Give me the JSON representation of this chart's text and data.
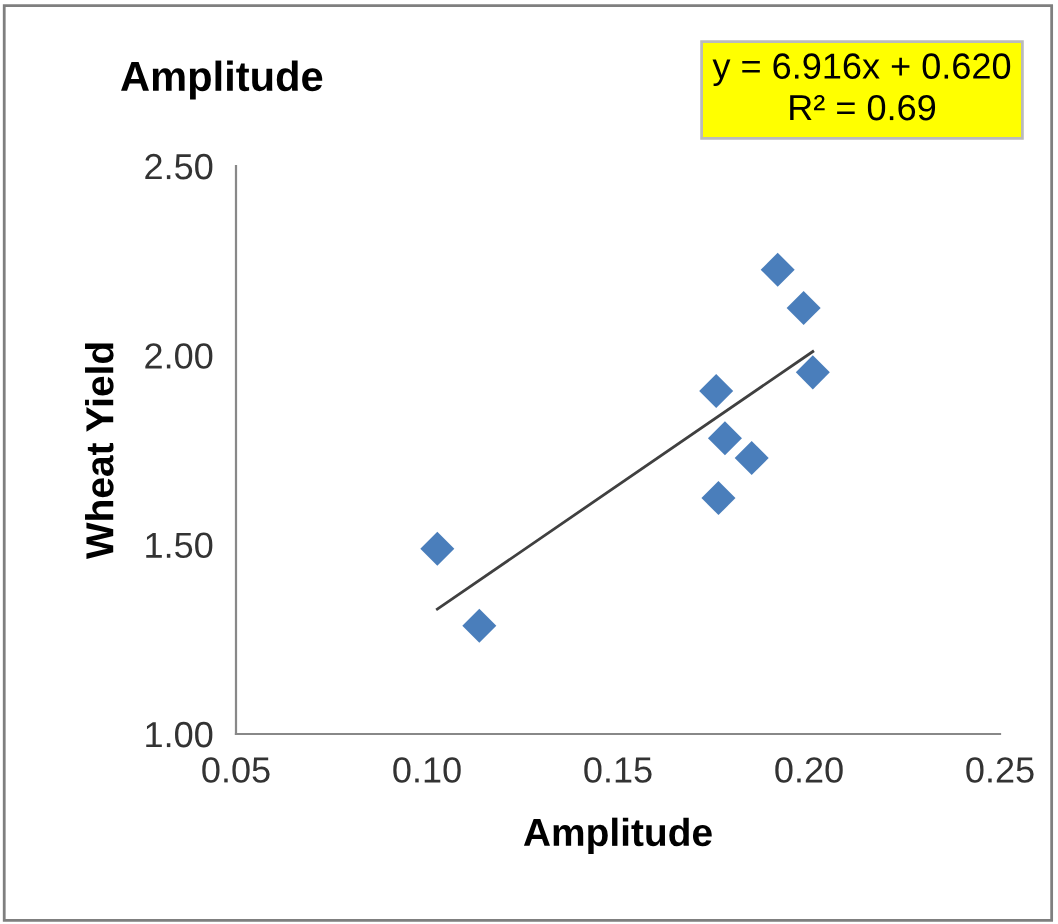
{
  "chart_data": {
    "type": "scatter",
    "title": "Amplitude",
    "xlabel": "Amplitude",
    "ylabel": "Wheat Yield",
    "annotations": [
      "y = 6.916x + 0.620\nR² = 0.69"
    ],
    "xlim": [
      0.05,
      0.25
    ],
    "xticks": [
      {
        "value": 0.05,
        "label": "0.05"
      },
      {
        "value": 0.1,
        "label": "0.10"
      },
      {
        "value": 0.15,
        "label": "0.15"
      },
      {
        "value": 0.2,
        "label": "0.20"
      },
      {
        "value": 0.25,
        "label": "0.25"
      }
    ],
    "ylim": [
      1.0,
      2.5
    ],
    "yticks": [
      {
        "value": 1.0,
        "label": "1.00"
      },
      {
        "value": 1.5,
        "label": "1.50"
      },
      {
        "value": 2.0,
        "label": "2.00"
      },
      {
        "value": 2.5,
        "label": "2.50"
      }
    ],
    "grid": false,
    "legend": false,
    "marker": "diamond",
    "series": [
      {
        "color": "#4a7ebb",
        "x": [
          0.1027,
          0.1137,
          0.1757,
          0.178,
          0.1763,
          0.185,
          0.1918,
          0.1986,
          0.201
        ],
        "values": [
          1.489,
          1.286,
          1.906,
          1.781,
          1.623,
          1.729,
          2.226,
          2.125,
          1.955
        ]
      },
      {
        "type": "line",
        "color": "#404040",
        "marker": "none",
        "line_style": "solid",
        "x": [
          0.1027,
          0.201
        ],
        "values": [
          1.33,
          2.01
        ]
      }
    ]
  }
}
